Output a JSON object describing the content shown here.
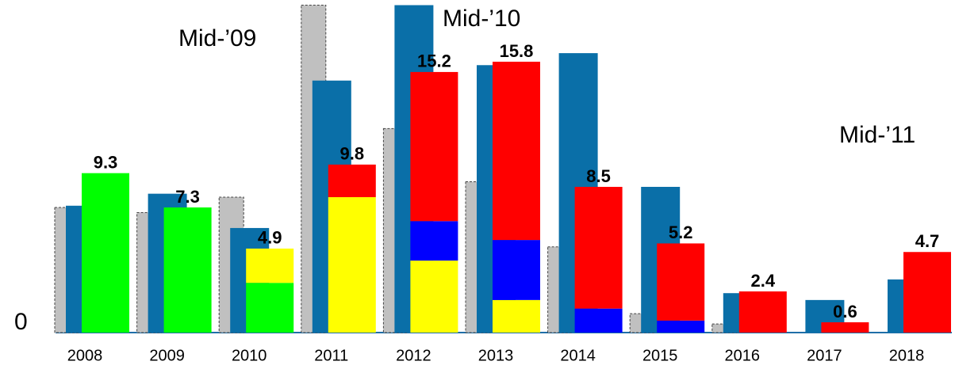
{
  "chart_data": {
    "type": "bar",
    "categories": [
      "2008",
      "2009",
      "2010",
      "2011",
      "2012",
      "2013",
      "2014",
      "2015",
      "2016",
      "2017",
      "2018"
    ],
    "series": [
      {
        "color": "#c0c0c0",
        "border": "dashed",
        "values": [
          7.3,
          7.0,
          7.9,
          19.1,
          11.9,
          8.8,
          5.0,
          1.1,
          0.5,
          null,
          null
        ]
      },
      {
        "color": "#0a6fa8",
        "values": [
          7.4,
          8.1,
          6.1,
          14.7,
          19.1,
          15.6,
          16.3,
          8.5,
          2.3,
          1.9,
          3.1
        ]
      }
    ],
    "stack": [
      {
        "color": "#00ff00",
        "values": [
          9.3,
          7.3,
          2.9,
          null,
          null,
          null,
          null,
          null,
          null,
          null,
          null
        ]
      },
      {
        "color": "#ffff00",
        "values": [
          null,
          null,
          2.0,
          7.9,
          4.2,
          1.9,
          null,
          null,
          null,
          null,
          null
        ]
      },
      {
        "color": "#0000ff",
        "values": [
          null,
          null,
          null,
          null,
          2.3,
          3.5,
          1.4,
          0.7,
          null,
          null,
          null
        ]
      },
      {
        "color": "#ff0000",
        "values": [
          null,
          null,
          null,
          1.9,
          8.7,
          10.4,
          7.1,
          4.5,
          2.4,
          0.6,
          4.7
        ]
      }
    ],
    "totals": [
      9.3,
      7.3,
      4.9,
      9.8,
      15.2,
      15.8,
      8.5,
      5.2,
      2.4,
      0.6,
      4.7
    ],
    "annotations": [
      "Mid-’09",
      "Mid-’10",
      "Mid-’11"
    ],
    "ylim": [
      0,
      19.4
    ],
    "yticks": [
      0
    ]
  }
}
